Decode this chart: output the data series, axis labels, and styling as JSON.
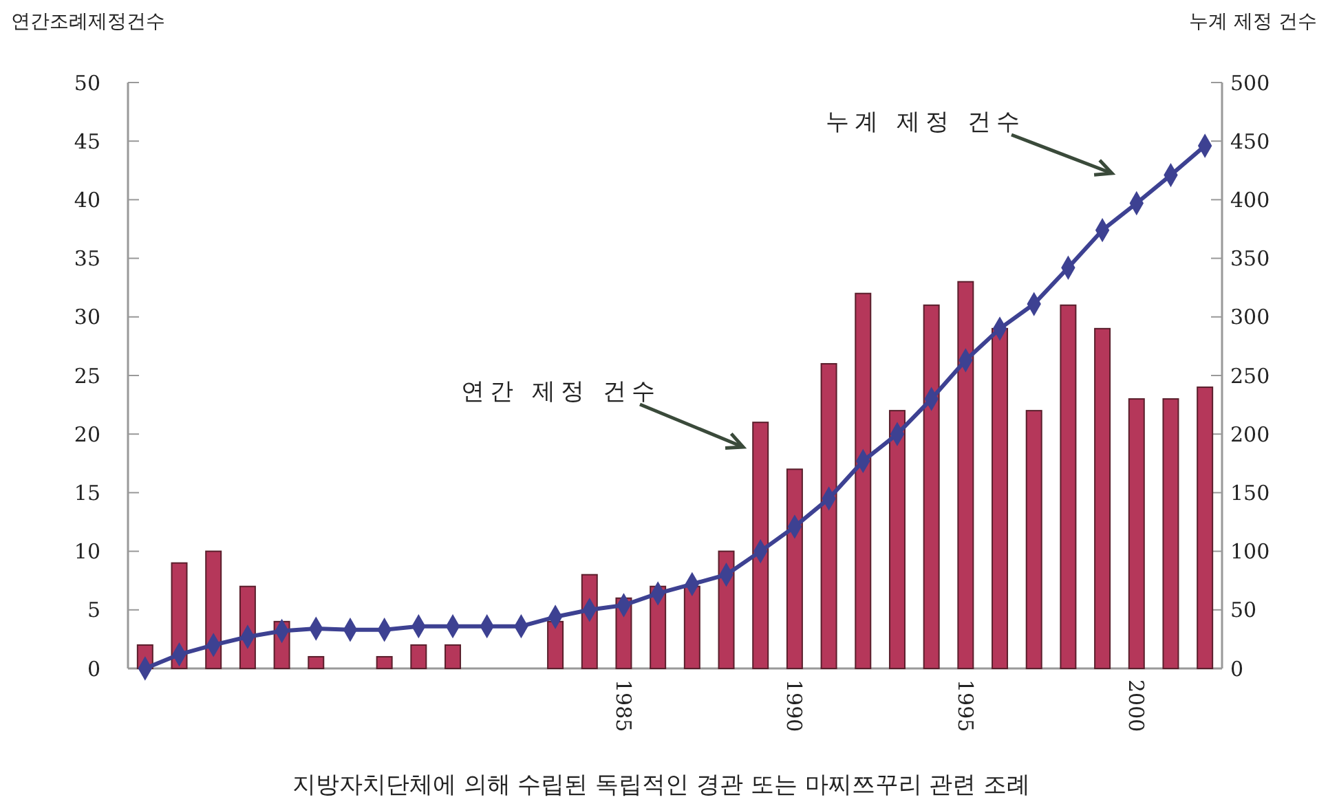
{
  "chart_data": {
    "type": "bar",
    "ylabel": "연간조례제정건수",
    "y2label": "누계 제정 건수",
    "xlabel": "지방자치단체에 의해 수립된 독립적인 경관 또는 마찌쯔꾸리 관련 조례",
    "x": [
      1971,
      1972,
      1973,
      1974,
      1975,
      1976,
      1977,
      1978,
      1979,
      1980,
      1981,
      1982,
      1983,
      1984,
      1985,
      1986,
      1987,
      1988,
      1989,
      1990,
      1991,
      1992,
      1993,
      1994,
      1995,
      1996,
      1997,
      1998,
      1999,
      2000,
      2001,
      2002
    ],
    "xlim": [
      1970.5,
      2002.5
    ],
    "xticks": [
      1985,
      1990,
      1995,
      2000
    ],
    "ylim": [
      0,
      50
    ],
    "yticks": [
      0,
      5,
      10,
      15,
      20,
      25,
      30,
      35,
      40,
      45,
      50
    ],
    "y2lim": [
      0,
      500
    ],
    "y2ticks": [
      0,
      50,
      100,
      150,
      200,
      250,
      300,
      350,
      400,
      450,
      500
    ],
    "grid": false,
    "series": [
      {
        "name": "연간 제정 건수",
        "color": "#b5375a",
        "values": [
          2,
          9,
          10,
          7,
          4,
          1,
          0,
          1,
          2,
          2,
          0,
          0,
          4,
          8,
          6,
          7,
          7,
          10,
          21,
          17,
          26,
          32,
          22,
          31,
          33,
          29,
          22,
          31,
          29,
          23,
          23,
          24
        ]
      },
      {
        "name": "누계 제정 건수",
        "type": "line",
        "axis": "y2",
        "color": "#3d4192",
        "marker": "diamond",
        "line_style": "solid",
        "values": [
          0,
          12,
          20,
          27,
          32,
          34,
          33,
          33,
          36,
          36,
          36,
          36,
          44,
          50,
          54,
          64,
          72,
          80,
          100,
          121,
          145,
          177,
          200,
          230,
          263,
          290,
          311,
          342,
          374,
          397,
          421,
          446
        ]
      }
    ]
  }
}
